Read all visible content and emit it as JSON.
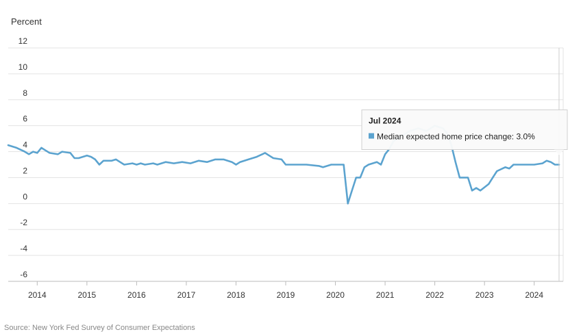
{
  "chart_data": {
    "type": "line",
    "title": "",
    "ylabel": "Percent",
    "xlabel": "",
    "ylim": [
      -6,
      12
    ],
    "yticks": [
      12,
      10,
      8,
      6,
      4,
      2,
      0,
      -2,
      -4,
      -6
    ],
    "xticks": [
      "2014",
      "2015",
      "2016",
      "2017",
      "2018",
      "2019",
      "2020",
      "2021",
      "2022",
      "2023",
      "2024"
    ],
    "grid": true,
    "series": [
      {
        "name": "Median expected home price change",
        "color": "#5ba3cf",
        "points": [
          [
            "2013-06",
            4.5
          ],
          [
            "2013-08",
            4.3
          ],
          [
            "2013-10",
            4.0
          ],
          [
            "2013-11",
            3.8
          ],
          [
            "2013-12",
            4.0
          ],
          [
            "2014-01",
            3.9
          ],
          [
            "2014-02",
            4.3
          ],
          [
            "2014-03",
            4.1
          ],
          [
            "2014-04",
            3.9
          ],
          [
            "2014-06",
            3.8
          ],
          [
            "2014-07",
            4.0
          ],
          [
            "2014-09",
            3.9
          ],
          [
            "2014-10",
            3.5
          ],
          [
            "2014-11",
            3.5
          ],
          [
            "2014-12",
            3.6
          ],
          [
            "2015-01",
            3.7
          ],
          [
            "2015-02",
            3.6
          ],
          [
            "2015-03",
            3.4
          ],
          [
            "2015-04",
            3.0
          ],
          [
            "2015-05",
            3.3
          ],
          [
            "2015-07",
            3.3
          ],
          [
            "2015-08",
            3.4
          ],
          [
            "2015-09",
            3.2
          ],
          [
            "2015-10",
            3.0
          ],
          [
            "2015-12",
            3.1
          ],
          [
            "2016-01",
            3.0
          ],
          [
            "2016-02",
            3.1
          ],
          [
            "2016-03",
            3.0
          ],
          [
            "2016-05",
            3.1
          ],
          [
            "2016-06",
            3.0
          ],
          [
            "2016-08",
            3.2
          ],
          [
            "2016-10",
            3.1
          ],
          [
            "2016-12",
            3.2
          ],
          [
            "2017-02",
            3.1
          ],
          [
            "2017-04",
            3.3
          ],
          [
            "2017-06",
            3.2
          ],
          [
            "2017-08",
            3.4
          ],
          [
            "2017-10",
            3.4
          ],
          [
            "2017-12",
            3.2
          ],
          [
            "2018-01",
            3.0
          ],
          [
            "2018-02",
            3.2
          ],
          [
            "2018-04",
            3.4
          ],
          [
            "2018-06",
            3.6
          ],
          [
            "2018-08",
            3.9
          ],
          [
            "2018-09",
            3.7
          ],
          [
            "2018-10",
            3.5
          ],
          [
            "2018-12",
            3.4
          ],
          [
            "2019-01",
            3.0
          ],
          [
            "2019-06",
            3.0
          ],
          [
            "2019-09",
            2.9
          ],
          [
            "2019-10",
            2.8
          ],
          [
            "2019-12",
            3.0
          ],
          [
            "2020-02",
            3.0
          ],
          [
            "2020-03",
            3.0
          ],
          [
            "2020-04",
            0.0
          ],
          [
            "2020-05",
            1.0
          ],
          [
            "2020-06",
            2.0
          ],
          [
            "2020-07",
            2.0
          ],
          [
            "2020-08",
            2.8
          ],
          [
            "2020-09",
            3.0
          ],
          [
            "2020-11",
            3.2
          ],
          [
            "2020-12",
            3.0
          ],
          [
            "2021-01",
            3.8
          ],
          [
            "2021-02",
            4.2
          ],
          [
            "2021-03",
            4.8
          ],
          [
            "2021-05",
            5.2
          ],
          [
            "2021-07",
            5.6
          ],
          [
            "2021-09",
            5.8
          ],
          [
            "2021-11",
            5.6
          ],
          [
            "2022-01",
            6.0
          ],
          [
            "2022-03",
            5.8
          ],
          [
            "2022-04",
            5.4
          ],
          [
            "2022-05",
            4.5
          ],
          [
            "2022-06",
            3.2
          ],
          [
            "2022-07",
            2.0
          ],
          [
            "2022-09",
            2.0
          ],
          [
            "2022-10",
            1.0
          ],
          [
            "2022-11",
            1.2
          ],
          [
            "2022-12",
            1.0
          ],
          [
            "2023-02",
            1.5
          ],
          [
            "2023-03",
            2.0
          ],
          [
            "2023-04",
            2.5
          ],
          [
            "2023-06",
            2.8
          ],
          [
            "2023-07",
            2.7
          ],
          [
            "2023-08",
            3.0
          ],
          [
            "2023-10",
            3.0
          ],
          [
            "2024-01",
            3.0
          ],
          [
            "2024-03",
            3.1
          ],
          [
            "2024-04",
            3.3
          ],
          [
            "2024-05",
            3.2
          ],
          [
            "2024-06",
            3.0
          ],
          [
            "2024-07",
            3.0
          ]
        ]
      }
    ],
    "tooltip": {
      "title": "Jul 2024",
      "series_label": "Median expected home price change: 3.0%",
      "x": "2024-07",
      "value": 3.0
    },
    "source": "Source: New York Fed Survey of Consumer Expectations"
  }
}
